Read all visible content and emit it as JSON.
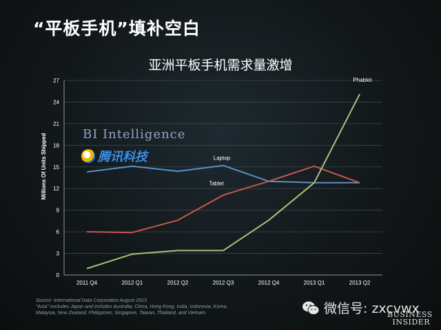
{
  "slide": {
    "title": "“平板手机”填补空白",
    "source_line1": "Source: International Data Corporation August 2013",
    "source_line2": "\"Asia\" excludes Japan and includes Australia, China, Hong Kong, India, Indonesia, Korea,",
    "source_line3": "Malaysia, New Zealand, Philippines, Singapore, Taiwan, Thailand, and Vietnam."
  },
  "watermarks": {
    "bi_intelligence": "BI Intelligence",
    "tencent": "腾讯科技",
    "wechat": "微信号: zxcvwx",
    "business": "BUSINESS",
    "insider": "INSIDER"
  },
  "chart_data": {
    "type": "line",
    "title": "亚洲平板手机需求量激增",
    "ylabel": "Millions Of Units Shipped",
    "xlabel": "",
    "ylim": [
      0,
      27
    ],
    "yticks": [
      0,
      3,
      6,
      9,
      12,
      15,
      18,
      21,
      24,
      27
    ],
    "categories": [
      "2011 Q4",
      "2012 Q1",
      "2012 Q2",
      "2012 Q3",
      "2012 Q4",
      "2013 Q1",
      "2013 Q2"
    ],
    "grid": true,
    "series": [
      {
        "name": "Laptop",
        "color": "#5b8fc9",
        "values": [
          14.3,
          15.1,
          14.4,
          15.2,
          13.0,
          12.8,
          12.8
        ]
      },
      {
        "name": "Tablet",
        "color": "#c9584f",
        "values": [
          6.0,
          5.9,
          7.6,
          11.1,
          13.0,
          15.1,
          12.8
        ]
      },
      {
        "name": "Phablet",
        "color": "#a8c47a",
        "values": [
          0.9,
          2.9,
          3.4,
          3.4,
          7.6,
          12.8,
          25.1
        ]
      }
    ]
  }
}
